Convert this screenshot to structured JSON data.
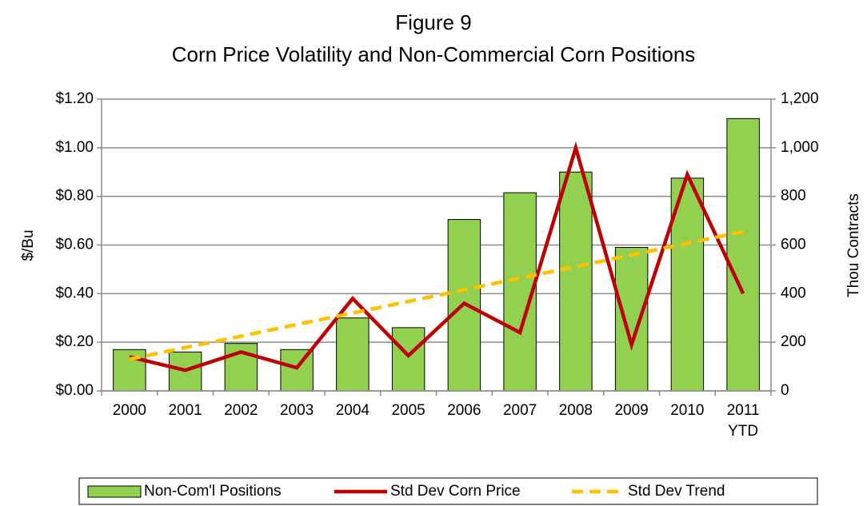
{
  "chart_data": {
    "type": "bar-line",
    "title": "Figure  9",
    "subtitle": "Corn Price Volatility and Non-Commercial Corn Positions",
    "ylabel": "$/Bu",
    "y2label": "Thou Contracts",
    "categories": [
      "2000",
      "2001",
      "2002",
      "2003",
      "2004",
      "2005",
      "2006",
      "2007",
      "2008",
      "2009",
      "2010",
      "2011 YTD"
    ],
    "series": [
      {
        "name": "Non-Com'l Positions",
        "type": "bar",
        "axis": "y2",
        "color": "#92d050",
        "values": [
          170,
          160,
          195,
          170,
          300,
          260,
          705,
          815,
          900,
          590,
          875,
          1120
        ]
      },
      {
        "name": "Std Dev Corn Price",
        "type": "line",
        "axis": "y",
        "color": "#c00000",
        "values": [
          0.14,
          0.085,
          0.16,
          0.095,
          0.38,
          0.145,
          0.36,
          0.24,
          1.0,
          0.19,
          0.89,
          0.4
        ]
      },
      {
        "name": "Std Dev Trend",
        "type": "line",
        "axis": "y",
        "color": "#ffc000",
        "style": "dashed",
        "values": [
          0.13,
          0.178,
          0.225,
          0.273,
          0.32,
          0.368,
          0.416,
          0.464,
          0.511,
          0.559,
          0.607,
          0.655
        ]
      }
    ],
    "ylim": [
      0,
      1.2
    ],
    "yticks": [
      {
        "value": 0,
        "label": "$0.00"
      },
      {
        "value": 0.2,
        "label": "$0.20"
      },
      {
        "value": 0.4,
        "label": "$0.40"
      },
      {
        "value": 0.6,
        "label": "$0.60"
      },
      {
        "value": 0.8,
        "label": "$0.80"
      },
      {
        "value": 1.0,
        "label": "$1.00"
      },
      {
        "value": 1.2,
        "label": "$1.20"
      }
    ],
    "y2lim": [
      0,
      1200
    ],
    "y2ticks": [
      0,
      200,
      400,
      600,
      800,
      {
        "value": 1000,
        "label": "1,000"
      },
      {
        "value": 1200,
        "label": "1,200"
      }
    ],
    "grid": true,
    "legend": "bottom"
  }
}
